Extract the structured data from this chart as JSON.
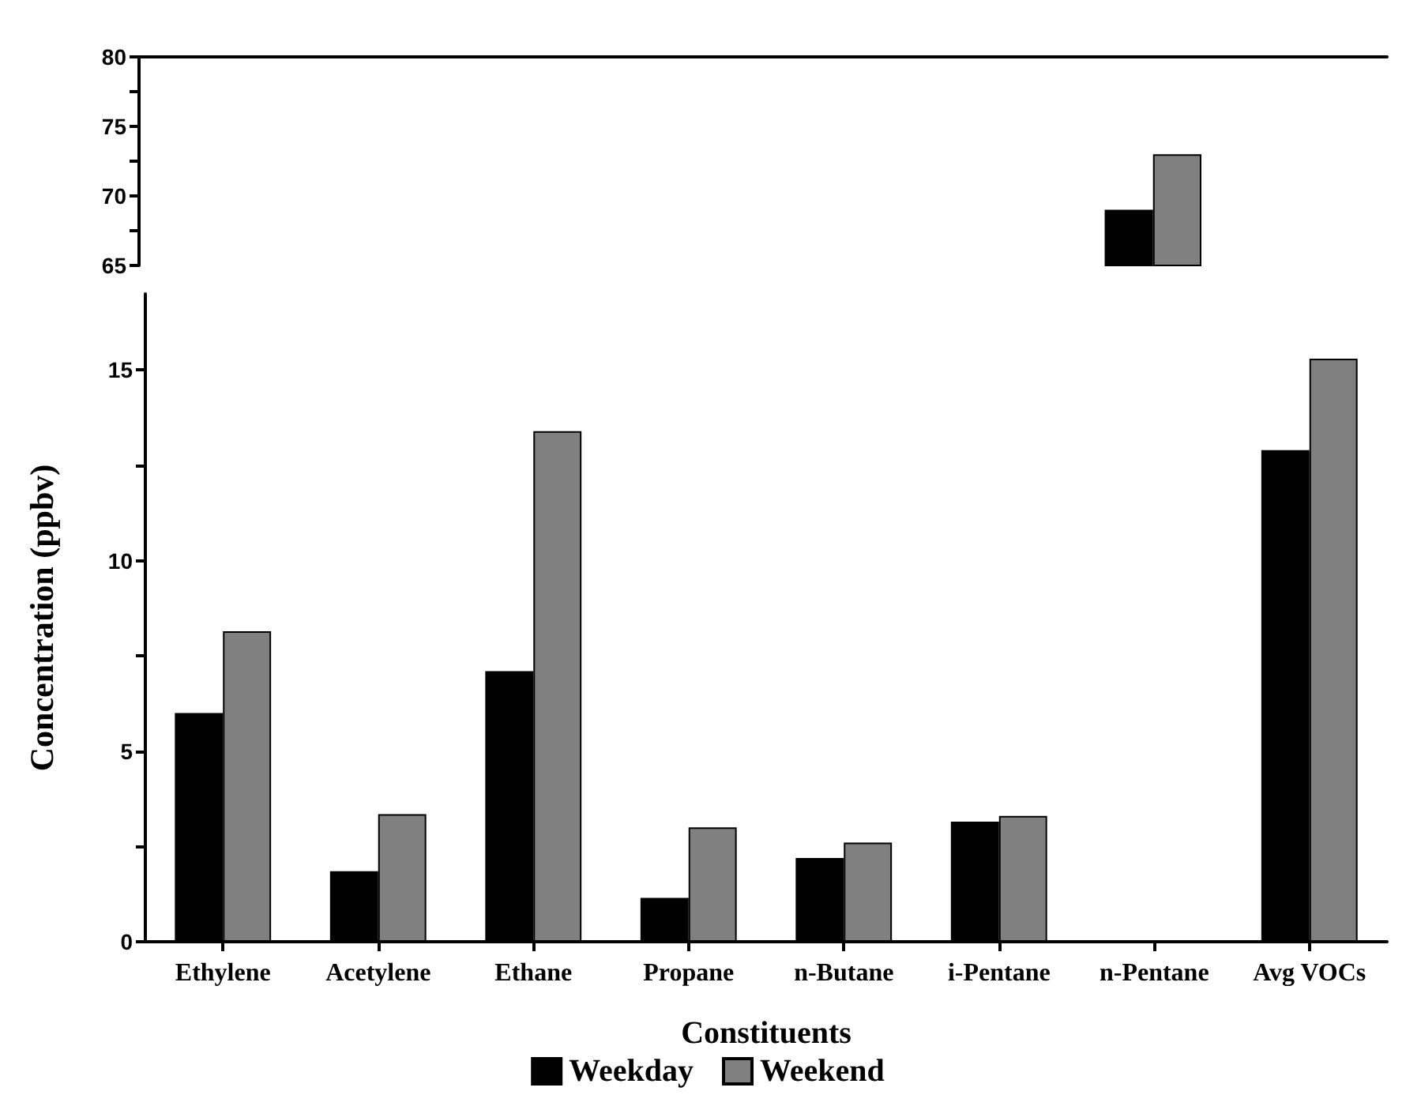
{
  "chart_data": [
    {
      "type": "bar",
      "categories": [
        null,
        null,
        null,
        null,
        null,
        null,
        null,
        null
      ],
      "series": [
        {
          "color": "#000000",
          "values": [
            null,
            null,
            null,
            null,
            null,
            null,
            69,
            null
          ]
        },
        {
          "color": "#808080",
          "values": [
            null,
            null,
            null,
            null,
            null,
            null,
            73,
            null
          ]
        }
      ],
      "ylim": [
        65,
        80
      ],
      "yticks": [
        65,
        {
          "value": 67.5,
          "label": null
        },
        70,
        {
          "value": 72.5,
          "label": null
        },
        75,
        {
          "value": 77.5,
          "label": null
        },
        80
      ],
      "tick_labels": "y",
      "grid": false
    },
    {
      "type": "bar",
      "categories": [
        "Ethylene",
        "Acetylene",
        "Ethane",
        "Propane",
        "n-Butane",
        "i-Pentane",
        "n-Pentane",
        "Avg VOCs"
      ],
      "series": [
        {
          "name": "Weekday",
          "color": "#000000",
          "values": [
            6.0,
            1.85,
            7.1,
            1.15,
            2.2,
            3.15,
            null,
            12.9
          ]
        },
        {
          "name": "Weekend",
          "color": "#808080",
          "values": [
            8.15,
            3.35,
            13.4,
            3.0,
            2.6,
            3.3,
            null,
            15.3
          ]
        }
      ],
      "ylim": [
        0,
        17
      ],
      "yticks": [
        0,
        {
          "value": 2.5,
          "label": null
        },
        5,
        {
          "value": 7.5,
          "label": null
        },
        10,
        {
          "value": 12.5,
          "label": null
        },
        15
      ],
      "xlabel": "Constituents",
      "ylabel": "Concentration (ppbv)",
      "legend": "bottom",
      "grid": false
    }
  ]
}
